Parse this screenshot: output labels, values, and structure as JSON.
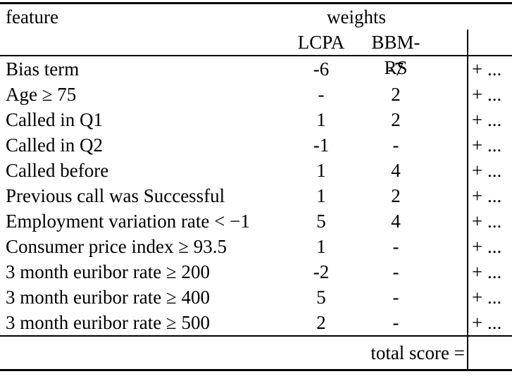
{
  "table": {
    "header": {
      "feature_label": "feature",
      "weights_label": "weights",
      "col_lcpa": "LCPA",
      "col_bbm_rs": "BBM-RS"
    },
    "suffix": "+ ...",
    "rows": [
      {
        "feature": "Bias term",
        "lcpa": "-6",
        "bbm": "-7"
      },
      {
        "feature": "Age ≥ 75",
        "lcpa": "-",
        "bbm": "2"
      },
      {
        "feature": "Called in Q1",
        "lcpa": "1",
        "bbm": "2"
      },
      {
        "feature": "Called in Q2",
        "lcpa": "-1",
        "bbm": "-"
      },
      {
        "feature": "Called before",
        "lcpa": "1",
        "bbm": "4"
      },
      {
        "feature": "Previous call was Successful",
        "lcpa": "1",
        "bbm": "2"
      },
      {
        "feature": "Employment variation rate < −1",
        "lcpa": "5",
        "bbm": "4"
      },
      {
        "feature": "Consumer price index ≥ 93.5",
        "lcpa": "1",
        "bbm": "-"
      },
      {
        "feature": "3 month euribor rate ≥ 200",
        "lcpa": "-2",
        "bbm": "-"
      },
      {
        "feature": "3 month euribor rate ≥ 400",
        "lcpa": "5",
        "bbm": "-"
      },
      {
        "feature": "3 month euribor rate ≥ 500",
        "lcpa": "2",
        "bbm": "-"
      }
    ],
    "footer": {
      "total_label": "total score ="
    }
  }
}
